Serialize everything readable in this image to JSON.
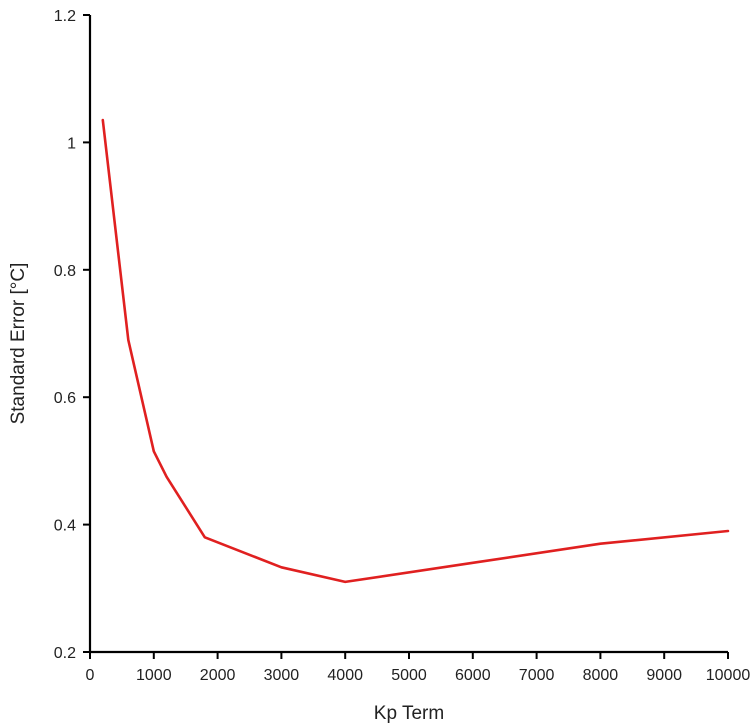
{
  "chart_data": {
    "type": "line",
    "title": "",
    "xlabel": "Kp Term",
    "ylabel": "Standard Error [°C]",
    "xlim": [
      0,
      10000
    ],
    "ylim": [
      0.2,
      1.2
    ],
    "x_ticks": [
      0,
      1000,
      2000,
      3000,
      4000,
      5000,
      6000,
      7000,
      8000,
      9000,
      10000
    ],
    "y_ticks": [
      0.2,
      0.4,
      0.6,
      0.8,
      1.0,
      1.2
    ],
    "x_tick_labels": [
      "0",
      "1000",
      "2000",
      "3000",
      "4000",
      "5000",
      "6000",
      "7000",
      "8000",
      "9000",
      "10000"
    ],
    "y_tick_labels": [
      "0.2",
      "0.4",
      "0.6",
      "0.8",
      "1",
      "1.2"
    ],
    "grid": false,
    "legend": "none",
    "series": [
      {
        "color": "#e02020",
        "x": [
          200,
          600,
          1000,
          1200,
          1800,
          3000,
          4000,
          6000,
          8000,
          10000
        ],
        "y": [
          1.035,
          0.69,
          0.515,
          0.475,
          0.38,
          0.333,
          0.31,
          0.34,
          0.37,
          0.39
        ]
      }
    ]
  }
}
